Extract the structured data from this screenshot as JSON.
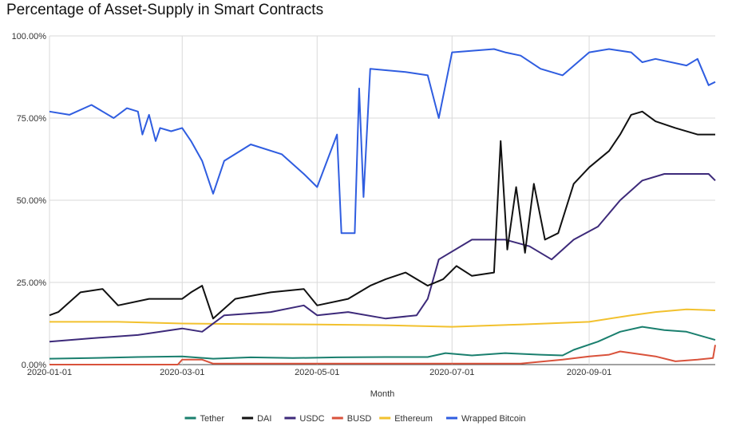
{
  "chart_data": {
    "type": "line",
    "title": "Percentage of Asset-Supply in Smart Contracts",
    "xlabel": "Month",
    "ylabel": "",
    "ylim": [
      0,
      100
    ],
    "xlim": [
      "2020-01-01",
      "2020-10-28"
    ],
    "x_ticks": [
      "2020-01-01",
      "2020-03-01",
      "2020-05-01",
      "2020-07-01",
      "2020-09-01"
    ],
    "y_ticks": [
      0,
      25,
      50,
      75,
      100
    ],
    "y_tick_labels": [
      "0.00%",
      "25.00%",
      "50.00%",
      "75.00%",
      "100.00%"
    ],
    "grid": true,
    "legend_position": "bottom",
    "series": [
      {
        "name": "Tether",
        "color": "#1a7f6e",
        "x": [
          "2020-01-01",
          "2020-01-20",
          "2020-02-10",
          "2020-03-01",
          "2020-03-15",
          "2020-04-01",
          "2020-04-20",
          "2020-05-10",
          "2020-06-01",
          "2020-06-20",
          "2020-06-28",
          "2020-07-10",
          "2020-07-25",
          "2020-08-10",
          "2020-08-20",
          "2020-08-25",
          "2020-09-05",
          "2020-09-15",
          "2020-09-25",
          "2020-10-05",
          "2020-10-15",
          "2020-10-28"
        ],
        "values": [
          1.8,
          2,
          2.3,
          2.5,
          1.8,
          2.2,
          2,
          2.2,
          2.3,
          2.3,
          3.5,
          2.8,
          3.5,
          3,
          2.8,
          4.5,
          7,
          10,
          11.5,
          10.5,
          10,
          7.5
        ]
      },
      {
        "name": "DAI",
        "color": "#111111",
        "x": [
          "2020-01-01",
          "2020-01-05",
          "2020-01-15",
          "2020-01-25",
          "2020-02-01",
          "2020-02-15",
          "2020-03-01",
          "2020-03-05",
          "2020-03-10",
          "2020-03-15",
          "2020-03-25",
          "2020-04-10",
          "2020-04-25",
          "2020-05-01",
          "2020-05-15",
          "2020-05-25",
          "2020-06-01",
          "2020-06-10",
          "2020-06-20",
          "2020-06-27",
          "2020-07-03",
          "2020-07-10",
          "2020-07-20",
          "2020-07-23",
          "2020-07-26",
          "2020-07-30",
          "2020-08-03",
          "2020-08-07",
          "2020-08-12",
          "2020-08-18",
          "2020-08-25",
          "2020-09-01",
          "2020-09-10",
          "2020-09-15",
          "2020-09-20",
          "2020-09-25",
          "2020-10-01",
          "2020-10-10",
          "2020-10-20",
          "2020-10-28"
        ],
        "values": [
          15,
          16,
          22,
          23,
          18,
          20,
          20,
          22,
          24,
          14,
          20,
          22,
          23,
          18,
          20,
          24,
          26,
          28,
          24,
          26,
          30,
          27,
          28,
          68,
          35,
          54,
          34,
          55,
          38,
          40,
          55,
          60,
          65,
          70,
          76,
          77,
          74,
          72,
          70,
          70
        ]
      },
      {
        "name": "USDC",
        "color": "#3d2a7a",
        "x": [
          "2020-01-01",
          "2020-01-20",
          "2020-02-10",
          "2020-03-01",
          "2020-03-10",
          "2020-03-20",
          "2020-04-10",
          "2020-04-25",
          "2020-05-01",
          "2020-05-15",
          "2020-06-01",
          "2020-06-15",
          "2020-06-20",
          "2020-06-25",
          "2020-07-10",
          "2020-07-25",
          "2020-08-05",
          "2020-08-15",
          "2020-08-25",
          "2020-09-05",
          "2020-09-15",
          "2020-09-25",
          "2020-10-05",
          "2020-10-15",
          "2020-10-25",
          "2020-10-28"
        ],
        "values": [
          7,
          8,
          9,
          11,
          10,
          15,
          16,
          18,
          15,
          16,
          14,
          15,
          20,
          32,
          38,
          38,
          36,
          32,
          38,
          42,
          50,
          56,
          58,
          58,
          58,
          56
        ]
      },
      {
        "name": "BUSD",
        "color": "#d9523b",
        "x": [
          "2020-01-01",
          "2020-02-28",
          "2020-03-01",
          "2020-03-10",
          "2020-03-15",
          "2020-04-01",
          "2020-06-01",
          "2020-08-01",
          "2020-08-20",
          "2020-09-01",
          "2020-09-10",
          "2020-09-15",
          "2020-10-01",
          "2020-10-10",
          "2020-10-20",
          "2020-10-27",
          "2020-10-28"
        ],
        "values": [
          0,
          0,
          1.5,
          1.5,
          0.3,
          0.3,
          0.3,
          0.3,
          1.5,
          2.5,
          3,
          4,
          2.5,
          1,
          1.5,
          2,
          6
        ]
      },
      {
        "name": "Ethereum",
        "color": "#f2c12e",
        "x": [
          "2020-01-01",
          "2020-02-01",
          "2020-03-01",
          "2020-04-01",
          "2020-05-01",
          "2020-06-01",
          "2020-07-01",
          "2020-08-01",
          "2020-09-01",
          "2020-09-20",
          "2020-10-01",
          "2020-10-15",
          "2020-10-28"
        ],
        "values": [
          13,
          13,
          12.5,
          12.3,
          12.2,
          12,
          11.5,
          12.2,
          13,
          15,
          16,
          16.8,
          16.5
        ]
      },
      {
        "name": "Wrapped Bitcoin",
        "color": "#2f5de0",
        "x": [
          "2020-01-01",
          "2020-01-10",
          "2020-01-20",
          "2020-01-30",
          "2020-02-05",
          "2020-02-10",
          "2020-02-12",
          "2020-02-15",
          "2020-02-18",
          "2020-02-20",
          "2020-02-25",
          "2020-03-01",
          "2020-03-05",
          "2020-03-10",
          "2020-03-15",
          "2020-03-20",
          "2020-04-01",
          "2020-04-15",
          "2020-04-25",
          "2020-05-01",
          "2020-05-10",
          "2020-05-12",
          "2020-05-18",
          "2020-05-20",
          "2020-05-22",
          "2020-05-25",
          "2020-06-10",
          "2020-06-20",
          "2020-06-25",
          "2020-07-01",
          "2020-07-20",
          "2020-07-25",
          "2020-08-01",
          "2020-08-10",
          "2020-08-20",
          "2020-09-01",
          "2020-09-10",
          "2020-09-20",
          "2020-09-25",
          "2020-10-01",
          "2020-10-15",
          "2020-10-20",
          "2020-10-25",
          "2020-10-28"
        ],
        "values": [
          77,
          76,
          79,
          75,
          78,
          77,
          70,
          76,
          68,
          72,
          71,
          72,
          68,
          62,
          52,
          62,
          67,
          64,
          58,
          54,
          70,
          40,
          40,
          84,
          51,
          90,
          89,
          88,
          75,
          95,
          96,
          95,
          94,
          90,
          88,
          95,
          96,
          95,
          92,
          93,
          91,
          93,
          85,
          86
        ]
      }
    ]
  }
}
